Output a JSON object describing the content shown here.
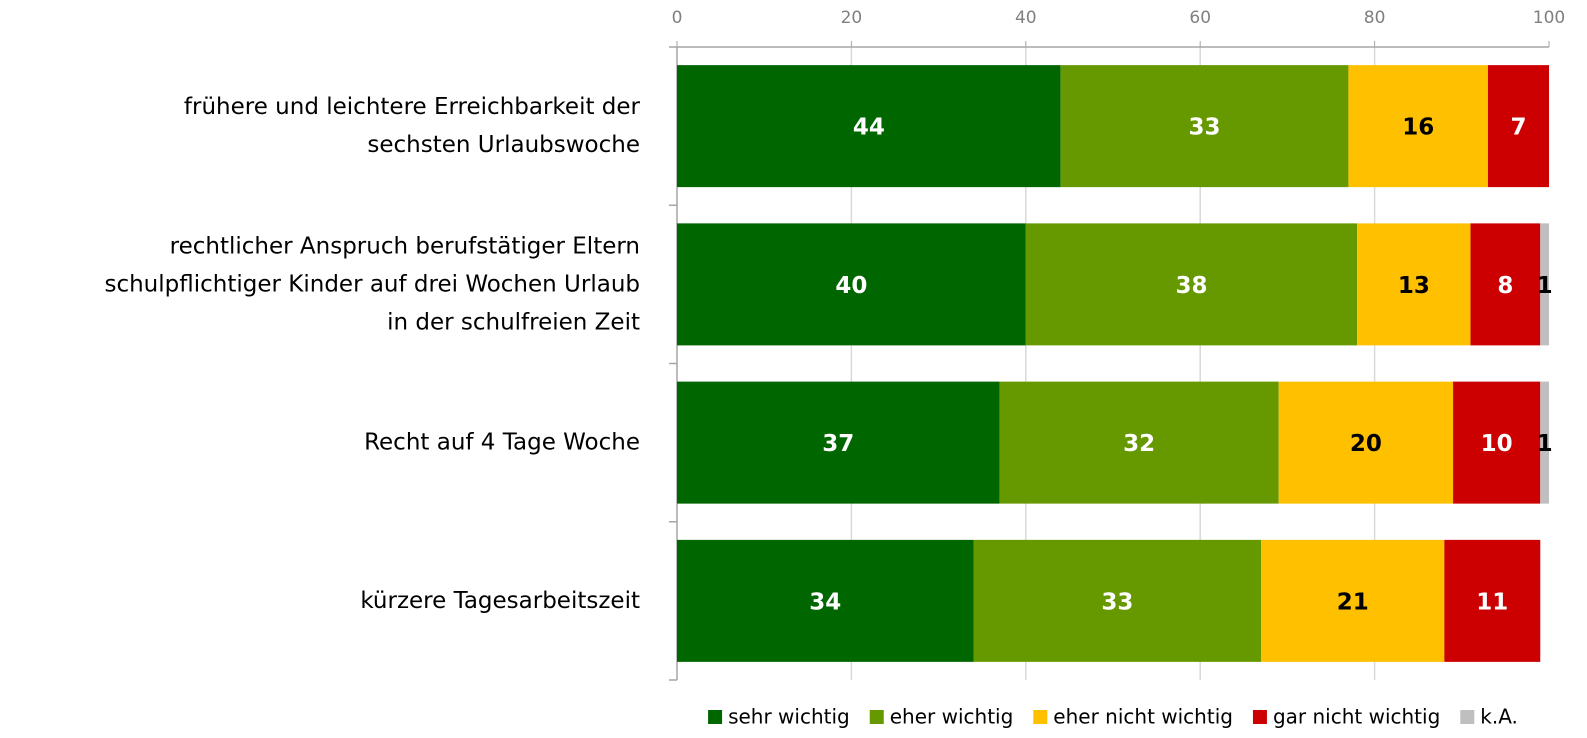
{
  "chart_data": {
    "type": "stacked_barh",
    "categories": [
      "frühere und leichtere Erreichbarkeit der\nsechsten Urlaubswoche",
      "rechtlicher Anspruch berufstätiger Eltern\nschulpflichtiger Kinder auf drei Wochen Urlaub\nin der schulfreien Zeit",
      "Recht auf 4 Tage Woche",
      "kürzere Tagesarbeitszeit"
    ],
    "series": [
      {
        "name": "sehr wichtig",
        "color": "#006600",
        "label_color": "#ffffff",
        "values": [
          44,
          40,
          37,
          34
        ]
      },
      {
        "name": "eher wichtig",
        "color": "#669900",
        "label_color": "#ffffff",
        "values": [
          33,
          38,
          32,
          33
        ]
      },
      {
        "name": "eher nicht wichtig",
        "color": "#ffc000",
        "label_color": "#000000",
        "values": [
          16,
          13,
          20,
          21
        ]
      },
      {
        "name": "gar nicht wichtig",
        "color": "#cc0000",
        "label_color": "#ffffff",
        "values": [
          7,
          8,
          10,
          11
        ]
      },
      {
        "name": "k.A.",
        "color": "#bfbfbf",
        "label_color": "#000000",
        "values": [
          null,
          1,
          1,
          null
        ]
      }
    ],
    "xlim": [
      0,
      100
    ],
    "xticks": [
      0,
      20,
      40,
      60,
      80,
      100
    ],
    "grid": true,
    "legend": "bottom"
  }
}
